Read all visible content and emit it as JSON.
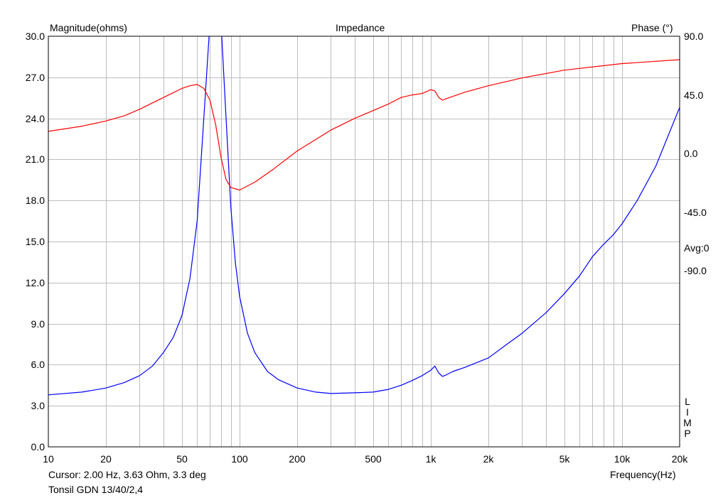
{
  "chart_data": {
    "type": "line",
    "title": "Impedance",
    "xlabel": "Frequency(Hz)",
    "ylabel_left": "Magnitude(ohms)",
    "ylabel_right": "Phase (°)",
    "x_scale": "log",
    "xlim": [
      10,
      20000
    ],
    "ylim_left": [
      0,
      30
    ],
    "ylim_right": [
      -225,
      90
    ],
    "grid": true,
    "x_tick_labels": [
      "10",
      "20",
      "50",
      "100",
      "200",
      "500",
      "1k",
      "2k",
      "5k",
      "10k",
      "20k"
    ],
    "y_left_tick_labels": [
      "0.0",
      "3.0",
      "6.0",
      "9.0",
      "12.0",
      "15.0",
      "18.0",
      "21.0",
      "24.0",
      "27.0",
      "30.0"
    ],
    "y_right_tick_labels": [
      "90.0",
      "45.0",
      "0.0",
      "-45.0",
      "-90.0"
    ],
    "avg_label": "Avg:0",
    "side_label_letters": [
      "L",
      "I",
      "M",
      "P"
    ],
    "cursor_text": "Cursor: 2.00 Hz, 3.63 Ohm, 3.3 deg",
    "device_name": "Tonsil GDN 13/40/2,4",
    "series": [
      {
        "axis": "left",
        "color": "#0000ff",
        "x": [
          10,
          15,
          20,
          25,
          30,
          35,
          40,
          45,
          50,
          55,
          60,
          65,
          70,
          75,
          80,
          85,
          90,
          95,
          100,
          110,
          120,
          140,
          160,
          200,
          250,
          300,
          400,
          500,
          600,
          700,
          800,
          900,
          1000,
          1050,
          1100,
          1150,
          1200,
          1300,
          1500,
          2000,
          2500,
          3000,
          4000,
          5000,
          6000,
          7000,
          8000,
          9000,
          10000,
          12000,
          15000,
          20000
        ],
        "y": [
          3.8,
          4.0,
          4.3,
          4.7,
          5.2,
          5.9,
          6.9,
          8.0,
          9.6,
          12.3,
          16.5,
          24.0,
          31.0,
          31.0,
          31.0,
          24.0,
          17.5,
          13.5,
          11.0,
          8.3,
          6.9,
          5.5,
          4.9,
          4.3,
          4.0,
          3.9,
          3.95,
          4.0,
          4.2,
          4.5,
          4.85,
          5.2,
          5.6,
          5.9,
          5.4,
          5.15,
          5.25,
          5.5,
          5.8,
          6.5,
          7.5,
          8.3,
          9.8,
          11.2,
          12.5,
          13.9,
          14.8,
          15.5,
          16.3,
          18.0,
          20.5,
          24.8
        ]
      },
      {
        "axis": "right",
        "color": "#ff0000",
        "x": [
          10,
          15,
          20,
          25,
          30,
          40,
          50,
          55,
          60,
          65,
          70,
          75,
          80,
          85,
          90,
          100,
          120,
          150,
          200,
          300,
          400,
          500,
          600,
          700,
          800,
          900,
          1000,
          1050,
          1100,
          1150,
          1200,
          1500,
          2000,
          3000,
          5000,
          10000,
          20000
        ],
        "y": [
          17,
          21,
          25,
          29,
          34,
          43,
          50,
          52,
          53,
          50,
          41,
          22,
          -3,
          -20,
          -26,
          -28,
          -22,
          -12,
          2,
          18,
          27,
          33,
          38,
          43,
          45,
          46,
          49,
          48,
          43,
          41,
          42,
          47,
          52,
          58,
          64,
          69,
          72
        ]
      }
    ]
  }
}
